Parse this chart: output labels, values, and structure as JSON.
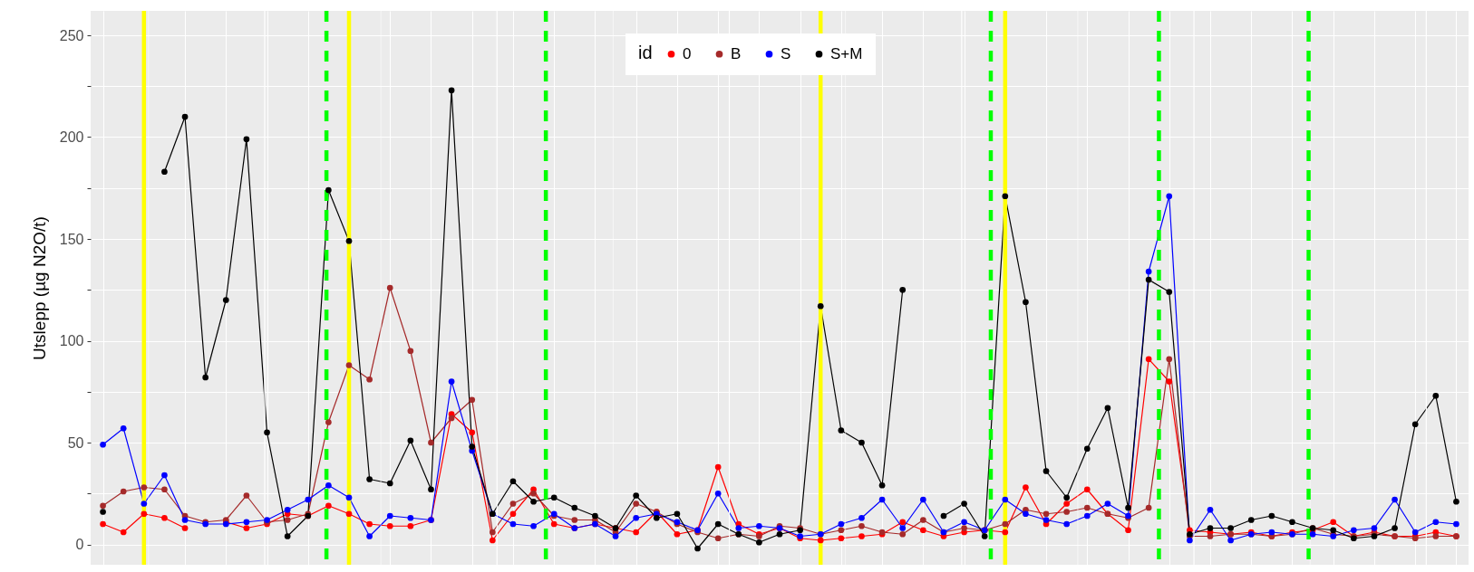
{
  "chart_data": {
    "type": "line",
    "ylabel": "Utslepp (µg N2O/t)",
    "legend_title": "id",
    "legend": "top",
    "grid": true,
    "marker": "circle",
    "line_style": "solid",
    "tick_labels": "y",
    "categories": [
      null,
      null,
      null,
      null,
      null,
      null,
      null,
      null,
      null,
      null,
      null,
      null,
      null,
      null,
      null,
      null,
      null,
      null,
      null,
      null,
      null,
      null,
      null,
      null,
      null,
      null,
      null,
      null,
      null,
      null,
      null,
      null,
      null,
      null,
      null,
      null,
      null,
      null,
      null,
      null,
      null,
      null,
      null,
      null,
      null,
      null,
      null,
      null,
      null,
      null,
      null,
      null,
      null,
      null,
      null,
      null,
      null,
      null,
      null,
      null,
      null,
      null,
      null,
      null,
      null,
      null,
      null
    ],
    "ylim": [
      -10,
      262
    ],
    "yticks": [
      0,
      {
        "value": 25,
        "label": null
      },
      50,
      {
        "value": 75,
        "label": null
      },
      100,
      {
        "value": 125,
        "label": null
      },
      150,
      {
        "value": 175,
        "label": null
      },
      200,
      {
        "value": 225,
        "label": null
      },
      250
    ],
    "series": [
      {
        "name": "0",
        "color": "#ff0000",
        "values": [
          10,
          6,
          15,
          13,
          8,
          null,
          11,
          8,
          10,
          15,
          14,
          19,
          15,
          10,
          9,
          9,
          12,
          64,
          55,
          2,
          15,
          27,
          10,
          8,
          10,
          8,
          6,
          16,
          5,
          7,
          38,
          10,
          5,
          8,
          3,
          2,
          3,
          4,
          5,
          11,
          7,
          4,
          6,
          7,
          6,
          28,
          10,
          20,
          27,
          15,
          7,
          91,
          80,
          7,
          6,
          5,
          6,
          4,
          6,
          7,
          11,
          4,
          6,
          4,
          4,
          6,
          4
        ]
      },
      {
        "name": "B",
        "color": "#a52a2a",
        "values": [
          19,
          26,
          28,
          27,
          14,
          11,
          12,
          24,
          11,
          12,
          15,
          60,
          88,
          81,
          126,
          95,
          50,
          62,
          71,
          6,
          20,
          25,
          14,
          12,
          12,
          6,
          20,
          16,
          10,
          6,
          3,
          5,
          4,
          9,
          8,
          5,
          7,
          9,
          6,
          5,
          12,
          6,
          8,
          7,
          10,
          17,
          15,
          16,
          18,
          15,
          13,
          18,
          91,
          4,
          4,
          5,
          5,
          4,
          5,
          8,
          5,
          4,
          5,
          4,
          3,
          4,
          4
        ]
      },
      {
        "name": "S",
        "color": "#0000ff",
        "values": [
          49,
          57,
          20,
          34,
          12,
          10,
          10,
          11,
          12,
          17,
          22,
          29,
          23,
          4,
          14,
          13,
          12,
          80,
          46,
          15,
          10,
          9,
          15,
          8,
          10,
          4,
          13,
          15,
          11,
          7,
          25,
          8,
          9,
          8,
          4,
          5,
          10,
          13,
          22,
          8,
          22,
          6,
          11,
          7,
          22,
          15,
          12,
          10,
          14,
          20,
          14,
          134,
          171,
          2,
          17,
          2,
          5,
          6,
          5,
          5,
          4,
          7,
          8,
          22,
          6,
          11,
          10
        ]
      },
      {
        "name": "S+M",
        "color": "#000000",
        "values": [
          16,
          null,
          null,
          183,
          210,
          82,
          120,
          199,
          55,
          4,
          14,
          174,
          149,
          32,
          30,
          51,
          27,
          223,
          48,
          15,
          31,
          21,
          23,
          18,
          14,
          8,
          24,
          13,
          15,
          -2,
          10,
          5,
          1,
          5,
          7,
          117,
          56,
          50,
          29,
          125,
          null,
          14,
          20,
          4,
          171,
          119,
          36,
          23,
          47,
          67,
          18,
          130,
          124,
          5,
          8,
          8,
          12,
          14,
          11,
          8,
          7,
          3,
          4,
          8,
          59,
          73,
          21
        ]
      }
    ]
  }
}
